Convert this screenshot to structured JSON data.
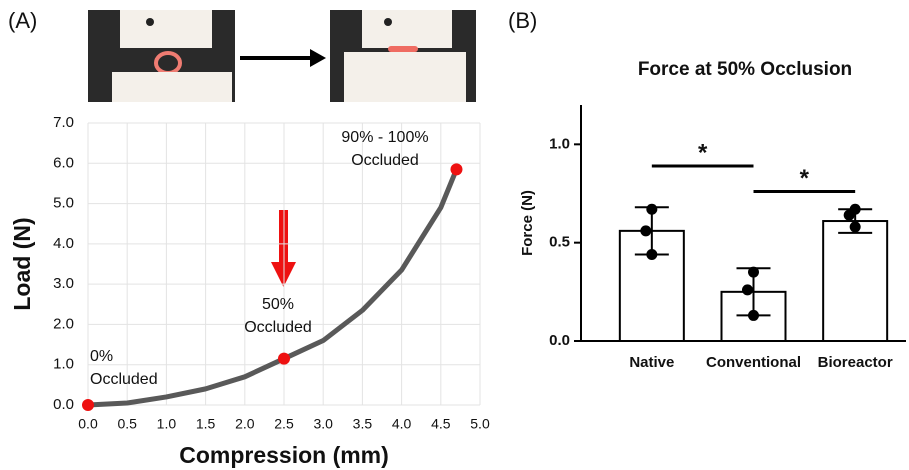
{
  "panel_labels": [
    "(A)",
    "(B)"
  ],
  "chart_data": [
    {
      "type": "line",
      "xlabel": "Compression (mm)",
      "ylabel": "Load (N)",
      "x": [
        0,
        0.5,
        1.0,
        1.5,
        2.0,
        2.5,
        3.0,
        3.5,
        4.0,
        4.5,
        4.7
      ],
      "series": [
        {
          "color": "#595959",
          "values": [
            0,
            0.05,
            0.2,
            0.4,
            0.7,
            1.15,
            1.6,
            2.35,
            3.35,
            4.9,
            5.85
          ]
        }
      ],
      "markers": {
        "color": "#ee1111",
        "x": [
          0,
          2.5,
          4.7
        ],
        "values": [
          0,
          1.15,
          5.85
        ]
      },
      "annotations": [
        [
          "0%",
          "Occluded"
        ],
        [
          "50%",
          "Occluded"
        ],
        [
          "90% - 100%",
          "Occluded"
        ]
      ],
      "xlim": [
        0,
        5
      ],
      "ylim": [
        0,
        7
      ],
      "xticks": [
        {
          "value": 0,
          "label": "0.0"
        },
        {
          "value": 0.5,
          "label": "0.5"
        },
        {
          "value": 1,
          "label": "1.0"
        },
        {
          "value": 1.5,
          "label": "1.5"
        },
        {
          "value": 2,
          "label": "2.0"
        },
        {
          "value": 2.5,
          "label": "2.5"
        },
        {
          "value": 3,
          "label": "3.0"
        },
        {
          "value": 3.5,
          "label": "3.5"
        },
        {
          "value": 4,
          "label": "4.0"
        },
        {
          "value": 4.5,
          "label": "4.5"
        },
        {
          "value": 5,
          "label": "5.0"
        }
      ],
      "yticks": [
        {
          "value": 0,
          "label": "0.0"
        },
        {
          "value": 1,
          "label": "1.0"
        },
        {
          "value": 2,
          "label": "2.0"
        },
        {
          "value": 3,
          "label": "3.0"
        },
        {
          "value": 4,
          "label": "4.0"
        },
        {
          "value": 5,
          "label": "5.0"
        },
        {
          "value": 6,
          "label": "6.0"
        },
        {
          "value": 7,
          "label": "7.0"
        }
      ],
      "grid": true
    },
    {
      "type": "bar",
      "title": "Force at 50% Occlusion",
      "ylabel": "Force (N)",
      "categories": [
        "Native",
        "Conventional",
        "Bioreactor"
      ],
      "values": [
        0.56,
        0.25,
        0.61
      ],
      "errors": [
        0.12,
        0.12,
        0.06
      ],
      "points": [
        [
          0.67,
          0.56,
          0.44
        ],
        [
          0.35,
          0.26,
          0.13
        ],
        [
          0.67,
          0.64,
          0.58
        ]
      ],
      "color": "#ffffff",
      "significance": [
        {
          "label": "*",
          "from": "Native",
          "to": "Conventional",
          "y": 0.89
        },
        {
          "label": "*",
          "from": "Conventional",
          "to": "Bioreactor",
          "y": 0.76
        }
      ],
      "ylim": [
        0,
        1.2
      ],
      "yticks": [
        {
          "value": 0,
          "label": "0.0"
        },
        {
          "value": 0.5,
          "label": "0.5"
        },
        {
          "value": 1,
          "label": "1.0"
        }
      ],
      "grid": false
    }
  ]
}
